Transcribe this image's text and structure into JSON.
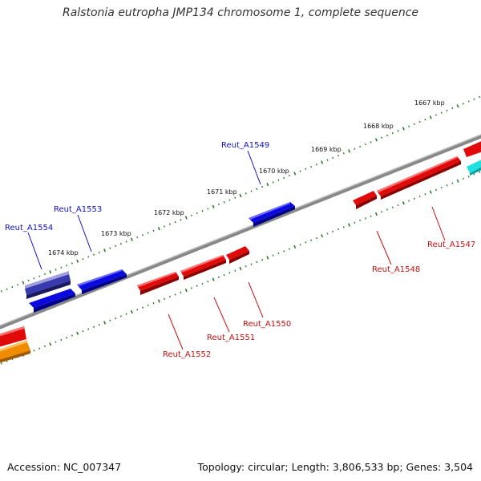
{
  "title": "Ralstonia eutropha JMP134 chromosome 1, complete sequence",
  "accession": "Accession: NC_007347",
  "summary": "Topology: circular; Length: 3,806,533 bp; Genes: 3,504",
  "kbp_labels": [
    "1667 kbp",
    "1668 kbp",
    "1669 kbp",
    "1670 kbp",
    "1671 kbp",
    "1672 kbp",
    "1673 kbp",
    "1674 kbp"
  ],
  "gene_labels": {
    "forward": [
      "Reut_A1549",
      "Reut_A1553",
      "Reut_A1554"
    ],
    "reverse": [
      "Reut_A1547",
      "Reut_A1548",
      "Reut_A1550",
      "Reut_A1551",
      "Reut_A1552"
    ]
  },
  "colors": {
    "forward_gene": "#0a0ae0",
    "reverse_gene": "#e00a0a",
    "backbone": "#888888",
    "tick": "#2a7a2a",
    "pseudo_gene": "#6a6ab8",
    "orange_gene": "#f08c00",
    "cyan_gene": "#20e0e0"
  }
}
